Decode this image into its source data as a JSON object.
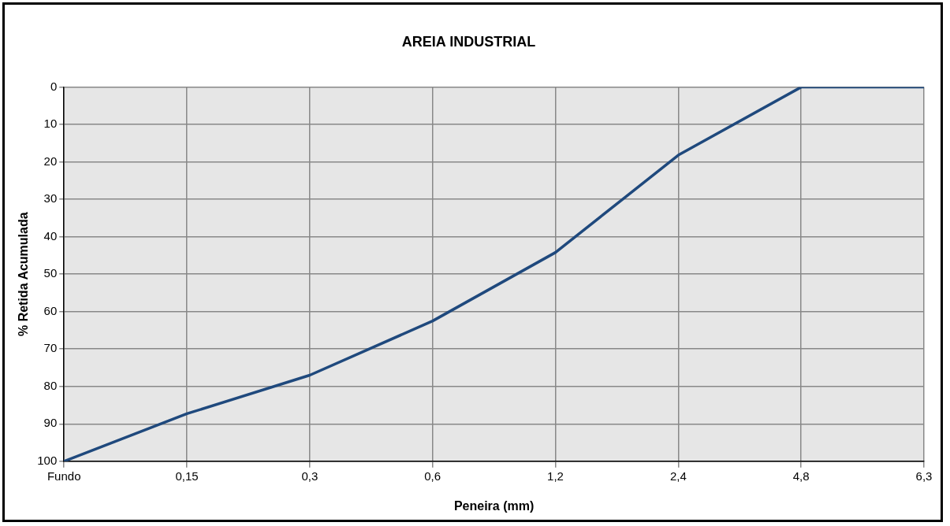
{
  "chart_data": {
    "type": "line",
    "title": "AREIA INDUSTRIAL",
    "xlabel": "Peneira (mm)",
    "ylabel": "% Retida Acumulada",
    "categories": [
      "Fundo",
      "0,15",
      "0,3",
      "0,6",
      "1,2",
      "2,4",
      "4,8",
      "6,3"
    ],
    "series": [
      {
        "color": "#1f497d",
        "values": [
          100,
          87.3,
          77,
          62.5,
          44.2,
          18.2,
          0,
          0
        ]
      }
    ],
    "ylim": [
      100,
      0
    ],
    "yticks": [
      0,
      10,
      20,
      30,
      40,
      50,
      60,
      70,
      80,
      90,
      100
    ],
    "grid": true,
    "legend": false,
    "marker": "none",
    "line_style": "solid"
  }
}
